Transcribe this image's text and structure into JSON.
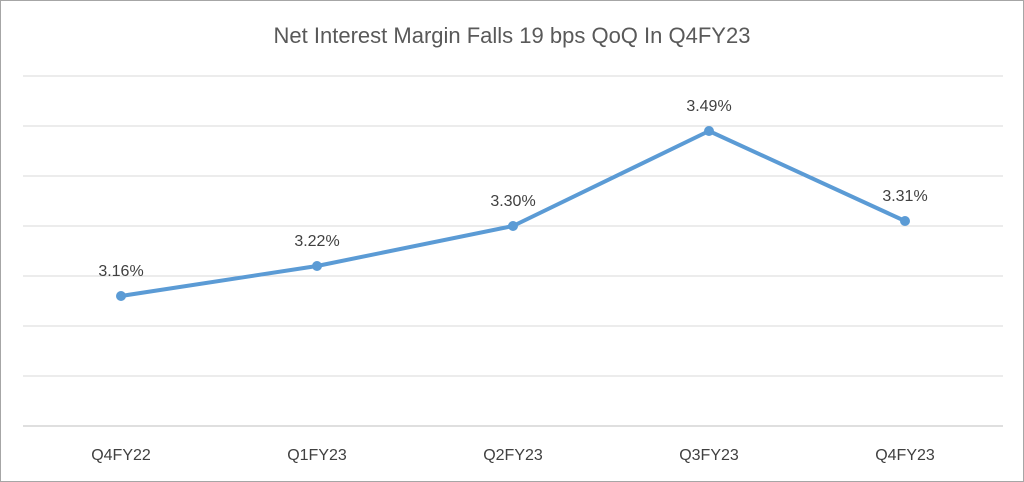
{
  "chart_data": {
    "type": "line",
    "title": "Net Interest Margin Falls 19 bps QoQ In Q4FY23",
    "categories": [
      "Q4FY22",
      "Q1FY23",
      "Q2FY23",
      "Q3FY23",
      "Q4FY23"
    ],
    "values": [
      3.16,
      3.22,
      3.3,
      3.49,
      3.31
    ],
    "data_labels": [
      "3.16%",
      "3.22%",
      "3.30%",
      "3.49%",
      "3.31%"
    ],
    "xlabel": "",
    "ylabel": "",
    "ylim": [
      2.9,
      3.6
    ],
    "grid": true,
    "legend": "none",
    "color": "#5b9bd5"
  }
}
